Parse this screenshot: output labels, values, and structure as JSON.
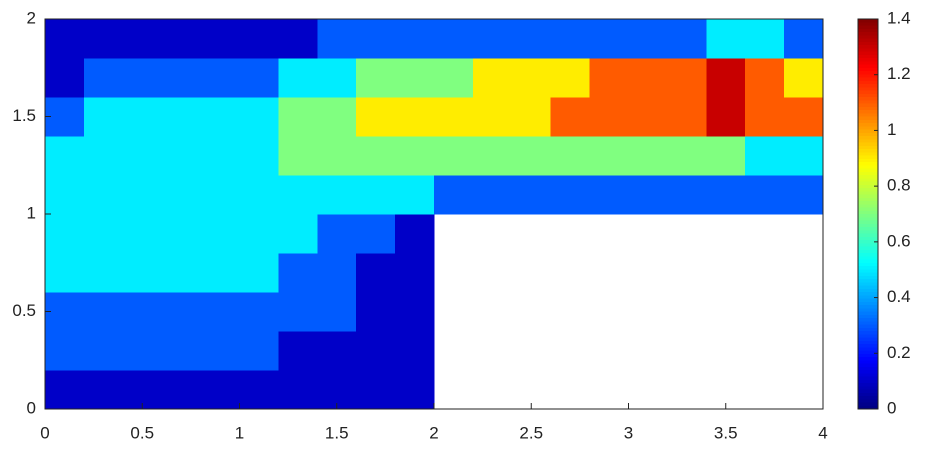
{
  "chart_data": {
    "type": "contour",
    "colormap": "jet",
    "x": [
      0.1,
      0.3,
      0.5,
      0.7,
      0.9,
      1.1,
      1.3,
      1.5,
      1.7,
      1.9,
      2.1,
      2.3,
      2.5,
      2.7,
      2.9,
      3.1,
      3.3,
      3.5,
      3.7,
      3.9
    ],
    "y": [
      0.1,
      0.3,
      0.5,
      0.7,
      0.9,
      1.1,
      1.3,
      1.5,
      1.7,
      1.9
    ],
    "z": [
      [
        0.1,
        0.1,
        0.1,
        0.1,
        0.1,
        0.1,
        0.1,
        0.1,
        0.1,
        0.1,
        null,
        null,
        null,
        null,
        null,
        null,
        null,
        null,
        null,
        null
      ],
      [
        0.3,
        0.3,
        0.3,
        0.3,
        0.3,
        0.25,
        0.1,
        0.1,
        0.1,
        0.1,
        null,
        null,
        null,
        null,
        null,
        null,
        null,
        null,
        null,
        null
      ],
      [
        0.3,
        0.35,
        0.35,
        0.35,
        0.35,
        0.35,
        0.3,
        0.3,
        0.1,
        0.1,
        null,
        null,
        null,
        null,
        null,
        null,
        null,
        null,
        null,
        null
      ],
      [
        0.5,
        0.5,
        0.5,
        0.5,
        0.5,
        0.45,
        0.35,
        0.3,
        0.1,
        0.1,
        null,
        null,
        null,
        null,
        null,
        null,
        null,
        null,
        null,
        null
      ],
      [
        0.5,
        0.5,
        0.5,
        0.5,
        0.5,
        0.5,
        0.45,
        0.3,
        0.3,
        0.1,
        null,
        null,
        null,
        null,
        null,
        null,
        null,
        null,
        null,
        null
      ],
      [
        0.5,
        0.5,
        0.5,
        0.5,
        0.5,
        0.5,
        0.55,
        0.5,
        0.5,
        0.45,
        0.3,
        0.3,
        0.3,
        0.3,
        0.3,
        0.3,
        0.3,
        0.3,
        0.3,
        0.3
      ],
      [
        0.45,
        0.5,
        0.5,
        0.5,
        0.5,
        0.55,
        0.65,
        0.65,
        0.7,
        0.7,
        0.7,
        0.75,
        0.7,
        0.7,
        0.75,
        0.7,
        0.7,
        0.7,
        0.5,
        0.5
      ],
      [
        0.35,
        0.45,
        0.5,
        0.5,
        0.5,
        0.55,
        0.65,
        0.7,
        0.85,
        0.9,
        0.9,
        0.9,
        0.95,
        1.05,
        1.1,
        1.05,
        1.1,
        1.25,
        1.1,
        1.05
      ],
      [
        0.1,
        0.3,
        0.3,
        0.3,
        0.35,
        0.35,
        0.45,
        0.5,
        0.6,
        0.7,
        0.75,
        0.85,
        0.9,
        0.9,
        1.05,
        1.1,
        1.05,
        1.25,
        1.05,
        0.9
      ],
      [
        0.1,
        0.1,
        0.1,
        0.1,
        0.1,
        0.15,
        0.1,
        0.2,
        0.3,
        0.3,
        0.3,
        0.3,
        0.3,
        0.3,
        0.35,
        0.35,
        0.35,
        0.4,
        0.5,
        0.3
      ]
    ],
    "xlim": [
      0,
      4
    ],
    "xticks": [
      0,
      0.5,
      1,
      1.5,
      2,
      2.5,
      3,
      3.5,
      4
    ],
    "ylim": [
      0,
      2
    ],
    "yticks": [
      0,
      0.5,
      1,
      1.5,
      2
    ],
    "clim": [
      0,
      1.4
    ],
    "cticks": [
      0,
      0.2,
      0.4,
      0.6,
      0.8,
      1,
      1.2,
      1.4
    ]
  }
}
